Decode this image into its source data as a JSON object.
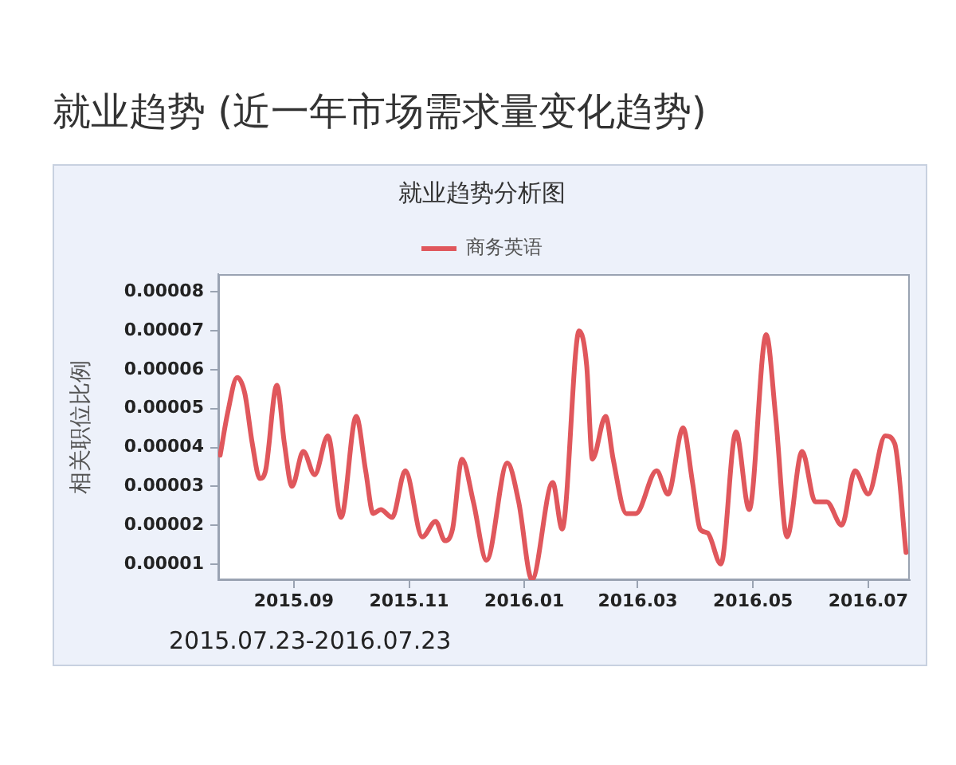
{
  "chart_data": {
    "type": "line",
    "title": "就业趋势 (近一年市场需求量变化趋势)",
    "subtitle": "就业趋势分析图",
    "ylabel": "相关职位比例",
    "annotations": [
      "2015.07.23-2016.07.23"
    ],
    "legend": "top",
    "x": [
      "2015-07-24",
      "2015-07-28",
      "2015-08-02",
      "2015-08-06",
      "2015-08-10",
      "2015-08-14",
      "2015-08-17",
      "2015-08-23",
      "2015-08-27",
      "2015-08-31",
      "2015-09-06",
      "2015-09-12",
      "2015-09-19",
      "2015-09-26",
      "2015-10-04",
      "2015-10-09",
      "2015-10-13",
      "2015-10-17",
      "2015-10-23",
      "2015-10-30",
      "2015-11-08",
      "2015-11-15",
      "2015-11-20",
      "2015-11-24",
      "2015-11-29",
      "2015-12-05",
      "2015-12-12",
      "2015-12-23",
      "2015-12-29",
      "2016-01-05",
      "2016-01-16",
      "2016-01-21",
      "2016-01-30",
      "2016-02-03",
      "2016-02-06",
      "2016-02-13",
      "2016-02-17",
      "2016-02-24",
      "2016-02-29",
      "2016-03-11",
      "2016-03-17",
      "2016-03-25",
      "2016-03-30",
      "2016-04-03",
      "2016-04-07",
      "2016-04-14",
      "2016-04-22",
      "2016-04-29",
      "2016-05-08",
      "2016-05-13",
      "2016-05-19",
      "2016-05-27",
      "2016-06-03",
      "2016-06-09",
      "2016-06-17",
      "2016-06-24",
      "2016-07-01",
      "2016-07-10",
      "2016-07-15",
      "2016-07-21"
    ],
    "series": [
      {
        "name": "商务英语",
        "color": "#e0575c",
        "values": [
          3.8e-05,
          4.9e-05,
          5.8e-05,
          5.4e-05,
          4.1e-05,
          3.2e-05,
          3.4e-05,
          5.6e-05,
          4.1e-05,
          3e-05,
          3.9e-05,
          3.3e-05,
          4.3e-05,
          2.2e-05,
          4.8e-05,
          3.4e-05,
          2.3e-05,
          2.4e-05,
          2.2e-05,
          3.4e-05,
          1.7e-05,
          2.1e-05,
          1.6e-05,
          1.9e-05,
          3.7e-05,
          2.6e-05,
          1.1e-05,
          3.6e-05,
          2.6e-05,
          6e-06,
          3.1e-05,
          1.9e-05,
          7e-05,
          6.1e-05,
          3.7e-05,
          4.8e-05,
          3.7e-05,
          2.3e-05,
          2.3e-05,
          3.4e-05,
          2.8e-05,
          4.5e-05,
          3.1e-05,
          1.9e-05,
          1.8e-05,
          1e-05,
          4.4e-05,
          2.4e-05,
          6.9e-05,
          4.8e-05,
          1.7e-05,
          3.9e-05,
          2.6e-05,
          2.6e-05,
          2e-05,
          3.4e-05,
          2.8e-05,
          4.3e-05,
          4.1e-05,
          1.3e-05
        ]
      }
    ],
    "xlim": [
      "2015-07-23",
      "2016-07-23"
    ],
    "xticks": [
      {
        "value": "2015-09-01",
        "label": "2015.09"
      },
      {
        "value": "2015-11-01",
        "label": "2015.11"
      },
      {
        "value": "2016-01-01",
        "label": "2016.01"
      },
      {
        "value": "2016-03-01",
        "label": "2016.03"
      },
      {
        "value": "2016-05-01",
        "label": "2016.05"
      },
      {
        "value": "2016-07-01",
        "label": "2016.07"
      }
    ],
    "ylim": [
      5.86e-06,
      8.46e-05
    ],
    "yticks": [
      {
        "value": 1e-05,
        "label": "0.00001"
      },
      {
        "value": 2e-05,
        "label": "0.00002"
      },
      {
        "value": 3e-05,
        "label": "0.00003"
      },
      {
        "value": 4e-05,
        "label": "0.00004"
      },
      {
        "value": 5e-05,
        "label": "0.00005"
      },
      {
        "value": 6e-05,
        "label": "0.00006"
      },
      {
        "value": 7e-05,
        "label": "0.00007"
      },
      {
        "value": 8e-05,
        "label": "0.00008"
      }
    ]
  }
}
